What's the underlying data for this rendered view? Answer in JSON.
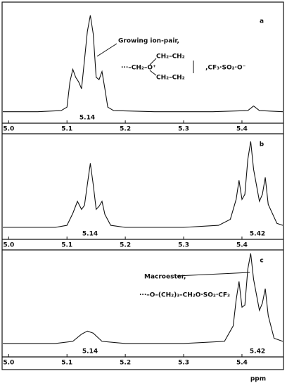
{
  "chart_data": [
    {
      "type": "line",
      "label": "a",
      "color": "#111111",
      "x": [
        4.99,
        5.05,
        5.09,
        5.1,
        5.105,
        5.11,
        5.115,
        5.12,
        5.125,
        5.13,
        5.135,
        5.14,
        5.145,
        5.15,
        5.155,
        5.16,
        5.165,
        5.17,
        5.18,
        5.25,
        5.35,
        5.41,
        5.42,
        5.43,
        5.47
      ],
      "values": [
        10,
        10,
        11,
        14,
        36,
        47,
        40,
        36,
        30,
        55,
        80,
        94,
        78,
        40,
        38,
        45,
        30,
        14,
        11,
        10,
        10,
        11,
        15,
        11,
        10
      ],
      "xlim": [
        4.99,
        5.47
      ],
      "ylim": [
        0,
        100
      ],
      "xticks": [
        {
          "value": 5,
          "label": "5.0"
        },
        5.1,
        5.2,
        5.3,
        5.4
      ],
      "annotations": [
        "5.14",
        "Growing ion-pair,",
        "···–CH₂–O⁺",
        "CH₂–CH₂",
        "CH₂–CH₂",
        ",CF₃·SO₂·O⁻"
      ]
    },
    {
      "type": "line",
      "label": "b",
      "color": "#111111",
      "x": [
        4.99,
        5.08,
        5.1,
        5.11,
        5.118,
        5.125,
        5.13,
        5.135,
        5.14,
        5.145,
        5.15,
        5.155,
        5.16,
        5.165,
        5.175,
        5.2,
        5.3,
        5.36,
        5.38,
        5.39,
        5.395,
        5.4,
        5.405,
        5.41,
        5.415,
        5.42,
        5.43,
        5.435,
        5.44,
        5.445,
        5.46,
        5.47
      ],
      "values": [
        12,
        12,
        14,
        26,
        38,
        30,
        34,
        55,
        76,
        55,
        30,
        33,
        38,
        25,
        14,
        12,
        12,
        14,
        20,
        40,
        59,
        40,
        45,
        80,
        98,
        70,
        38,
        45,
        62,
        35,
        16,
        14
      ],
      "xlim": [
        4.99,
        5.47
      ],
      "ylim": [
        0,
        100
      ],
      "xticks": [
        {
          "value": 5,
          "label": "5.0"
        },
        5.1,
        5.2,
        5.3,
        5.4
      ],
      "annotations": [
        "5.14",
        "5.42"
      ]
    },
    {
      "type": "line",
      "label": "c",
      "color": "#111111",
      "x": [
        4.99,
        5.08,
        5.11,
        5.125,
        5.135,
        5.145,
        5.16,
        5.2,
        5.3,
        5.37,
        5.385,
        5.39,
        5.395,
        5.4,
        5.405,
        5.41,
        5.415,
        5.42,
        5.43,
        5.435,
        5.44,
        5.445,
        5.455,
        5.47
      ],
      "values": [
        13,
        13,
        15,
        22,
        25,
        23,
        15,
        13,
        13,
        15,
        30,
        55,
        73,
        48,
        50,
        85,
        100,
        75,
        45,
        52,
        66,
        40,
        18,
        15
      ],
      "xlim": [
        4.99,
        5.47
      ],
      "ylim": [
        0,
        100
      ],
      "xticks": [
        {
          "value": 5,
          "label": "5.0"
        },
        5.1,
        5.2,
        5.3,
        5.4
      ],
      "xlabel": "ppm",
      "annotations": [
        "5.14",
        "5.42",
        "Macroester,",
        "···–O–(CH₂)₃–CH₂O·SO₂·CF₃"
      ]
    }
  ]
}
